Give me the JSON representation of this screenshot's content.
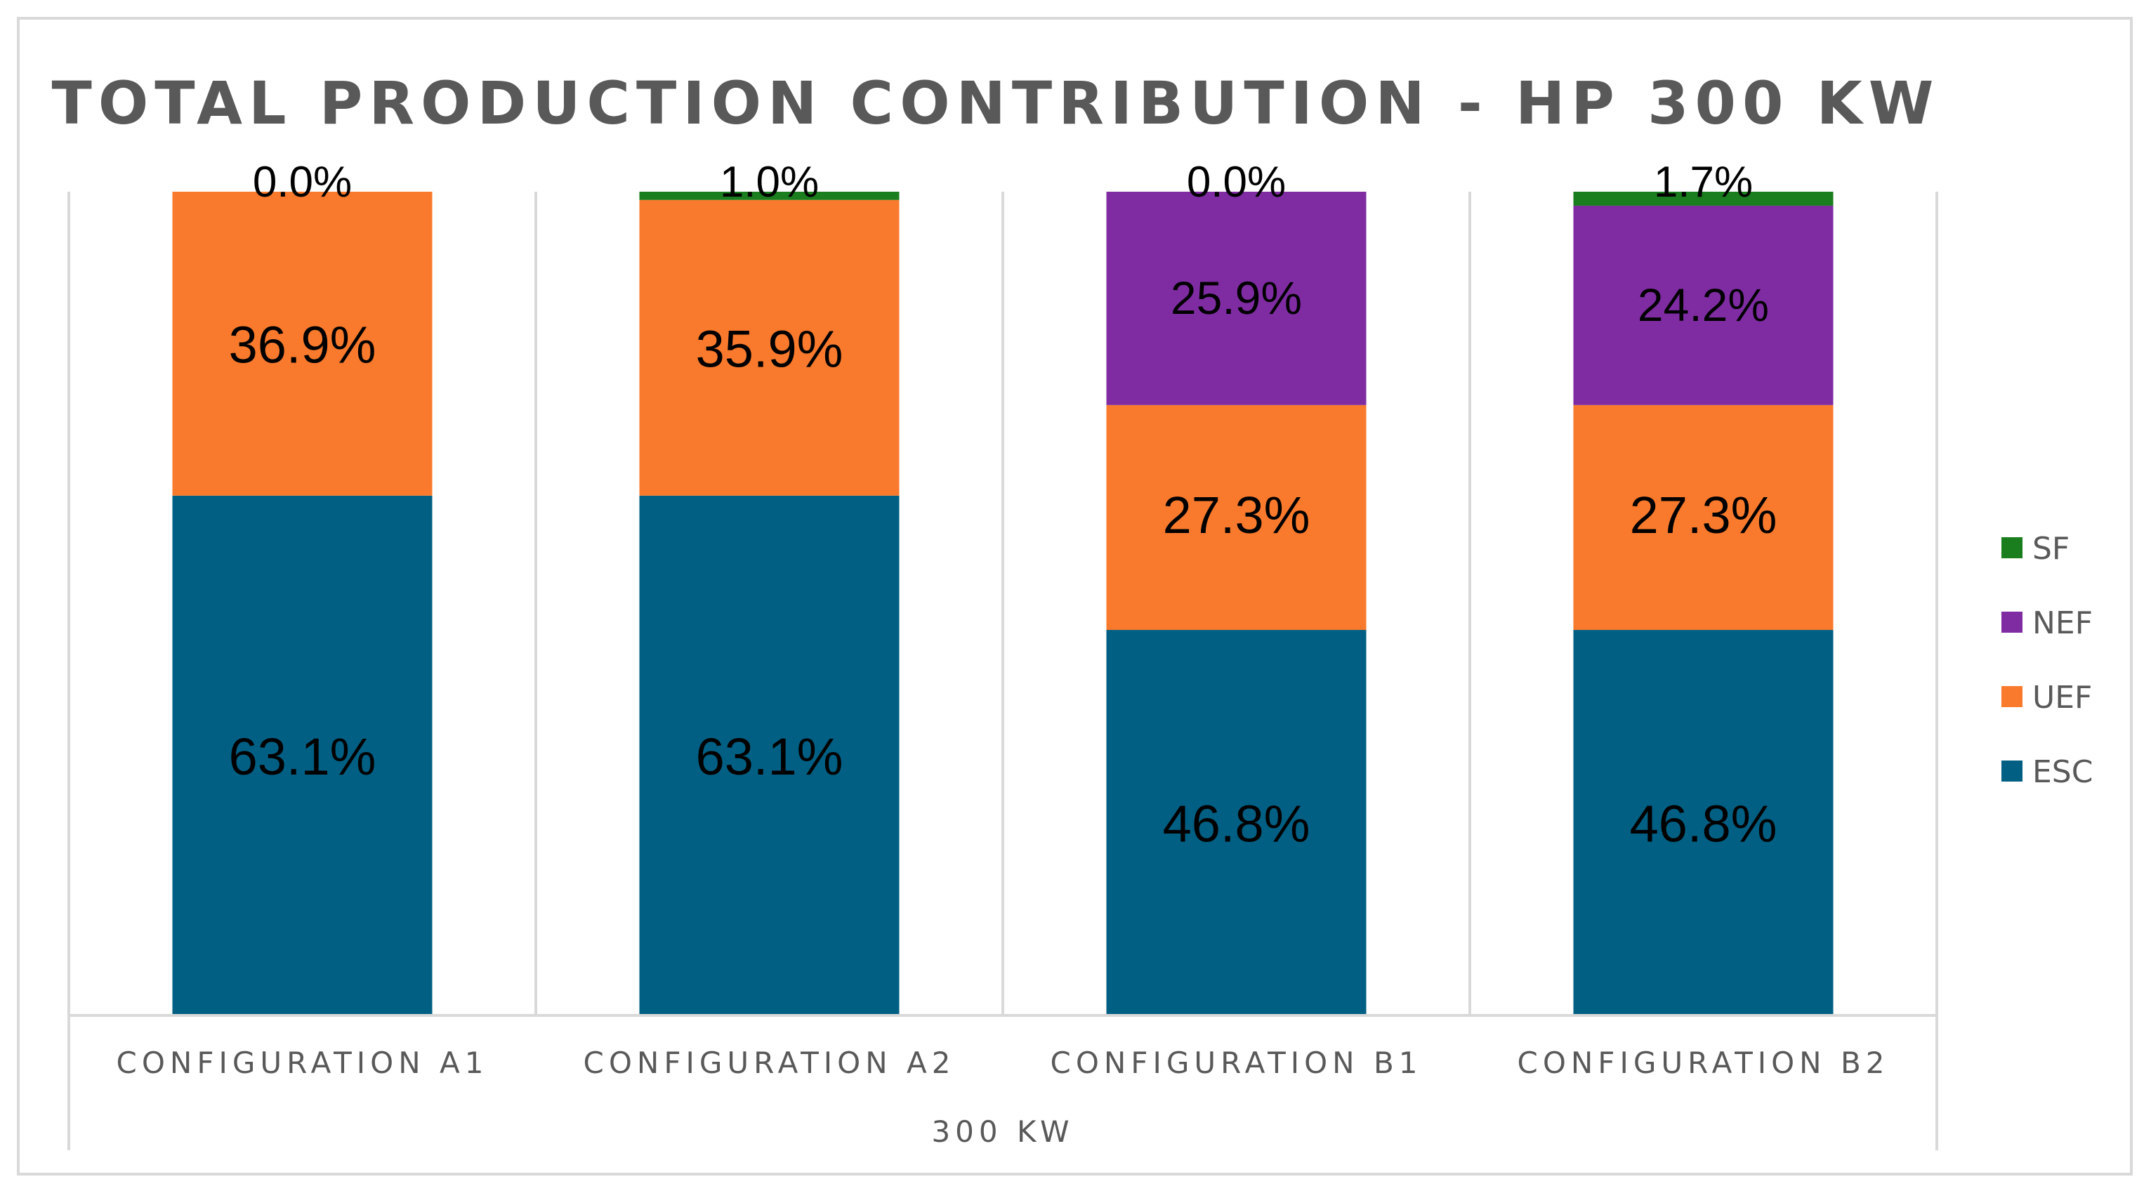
{
  "chart_data": {
    "type": "bar",
    "stacked": true,
    "title": "TOTAL PRODUCTION CONTRIBUTION - HP 300 KW",
    "categories": [
      "CONFIGURATION A1",
      "CONFIGURATION A2",
      "CONFIGURATION B1",
      "CONFIGURATION B2"
    ],
    "group_label": "300 KW",
    "ylim": [
      0,
      100
    ],
    "series": [
      {
        "name": "ESC",
        "color": "#005f83",
        "values": [
          63.1,
          63.1,
          46.8,
          46.8
        ],
        "labels": [
          "63.1%",
          "63.1%",
          "46.8%",
          "46.8%"
        ]
      },
      {
        "name": "UEF",
        "color": "#f97a2c",
        "values": [
          36.9,
          35.9,
          27.3,
          27.3
        ],
        "labels": [
          "36.9%",
          "35.9%",
          "27.3%",
          "27.3%"
        ]
      },
      {
        "name": "NEF",
        "color": "#7f2ca3",
        "values": [
          0,
          0,
          25.9,
          24.2
        ],
        "labels": [
          "",
          "",
          "25.9%",
          "24.2%"
        ]
      },
      {
        "name": "SF",
        "color": "#1a7d1e",
        "values": [
          0.0,
          1.0,
          0.0,
          1.7
        ],
        "labels": [
          "0.0%",
          "1.0%",
          "0.0%",
          "1.7%"
        ]
      }
    ],
    "legend": {
      "position": "right",
      "order": [
        "SF",
        "NEF",
        "UEF",
        "ESC"
      ]
    }
  }
}
